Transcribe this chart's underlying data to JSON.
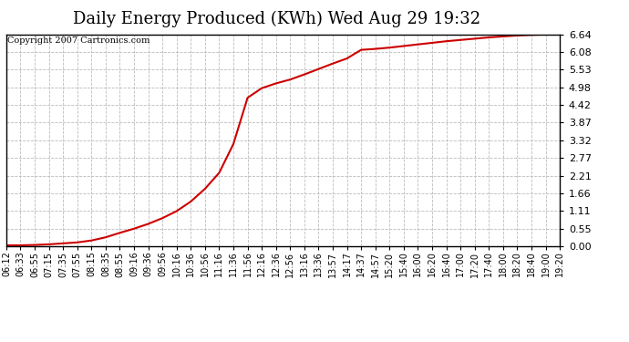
{
  "title": "Daily Energy Produced (KWh) Wed Aug 29 19:32",
  "copyright_text": "Copyright 2007 Cartronics.com",
  "line_color": "#cc0000",
  "background_color": "#ffffff",
  "plot_background": "#ffffff",
  "grid_color": "#bbbbbb",
  "yticks": [
    0.0,
    0.55,
    1.11,
    1.66,
    2.21,
    2.77,
    3.32,
    3.87,
    4.42,
    4.98,
    5.53,
    6.08,
    6.64
  ],
  "ylim": [
    0.0,
    6.64
  ],
  "x_labels": [
    "06:12",
    "06:33",
    "06:55",
    "07:15",
    "07:35",
    "07:55",
    "08:15",
    "08:35",
    "08:55",
    "09:16",
    "09:36",
    "09:56",
    "10:16",
    "10:36",
    "10:56",
    "11:16",
    "11:36",
    "11:56",
    "12:16",
    "12:36",
    "12:56",
    "13:16",
    "13:36",
    "13:57",
    "14:17",
    "14:37",
    "14:57",
    "15:20",
    "15:40",
    "16:00",
    "16:20",
    "16:40",
    "17:00",
    "17:20",
    "17:40",
    "18:00",
    "18:20",
    "18:40",
    "19:00",
    "19:20"
  ],
  "y_values": [
    0.03,
    0.03,
    0.04,
    0.06,
    0.09,
    0.12,
    0.18,
    0.28,
    0.42,
    0.55,
    0.7,
    0.88,
    1.1,
    1.4,
    1.8,
    2.3,
    3.2,
    4.65,
    4.95,
    5.1,
    5.22,
    5.38,
    5.55,
    5.72,
    5.88,
    6.15,
    6.18,
    6.22,
    6.27,
    6.32,
    6.37,
    6.42,
    6.46,
    6.5,
    6.54,
    6.57,
    6.6,
    6.62,
    6.63,
    6.64
  ],
  "title_fontsize": 13,
  "copyright_fontsize": 7,
  "tick_fontsize": 7,
  "ytick_fontsize": 8,
  "line_width": 1.5
}
